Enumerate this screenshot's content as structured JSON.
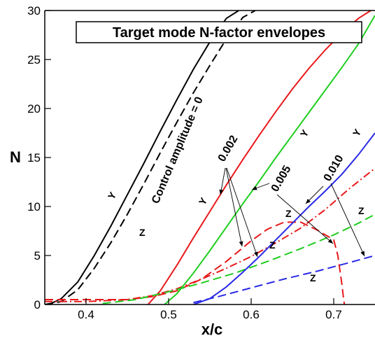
{
  "chart_data": {
    "type": "line",
    "title": "Target mode N-factor envelopes",
    "xlabel": "x/c",
    "ylabel": "N",
    "xlim": [
      0.35,
      0.75
    ],
    "ylim": [
      0,
      30
    ],
    "xticks": [
      0.4,
      0.5,
      0.6,
      0.7
    ],
    "yticks": [
      0,
      5,
      10,
      15,
      20,
      25,
      30
    ],
    "x_tick_labels": [
      "0.4",
      "0.5",
      "0.6",
      "0.7"
    ],
    "y_tick_labels": [
      "0",
      "5",
      "10",
      "15",
      "20",
      "25",
      "30"
    ],
    "grid": false,
    "legend": "none",
    "annotations": {
      "control_amplitude": "Control amplitude = 0",
      "a0002": "0.002",
      "a0005": "0.005",
      "a0010": "0.010",
      "y_label": "Y",
      "z_label": "Z"
    },
    "series": [
      {
        "color": "#000000",
        "dash": "solid",
        "x": [
          0.355,
          0.37,
          0.39,
          0.41,
          0.43,
          0.45,
          0.47,
          0.49,
          0.51,
          0.53,
          0.55,
          0.57,
          0.585
        ],
        "y": [
          0,
          0.6,
          2.3,
          5.0,
          8.0,
          11.2,
          14.4,
          17.7,
          20.9,
          24.0,
          26.8,
          29.2,
          30
        ]
      },
      {
        "color": "#000000",
        "dash": "dash",
        "x": [
          0.35,
          0.37,
          0.39,
          0.41,
          0.43,
          0.45,
          0.47,
          0.49,
          0.51,
          0.53,
          0.55,
          0.57,
          0.59,
          0.605
        ],
        "y": [
          0,
          0.3,
          1.5,
          3.7,
          6.3,
          9.2,
          12.3,
          15.5,
          18.6,
          21.6,
          24.4,
          27.1,
          29.3,
          30
        ]
      },
      {
        "color": "#e8191b",
        "dash": "solid",
        "x": [
          0.475,
          0.49,
          0.51,
          0.53,
          0.55,
          0.57,
          0.59,
          0.61,
          0.63,
          0.65,
          0.67,
          0.69,
          0.71,
          0.73,
          0.745
        ],
        "y": [
          0,
          1.4,
          4.0,
          6.8,
          9.5,
          12.2,
          14.8,
          17.3,
          19.7,
          22.0,
          24.1,
          26.0,
          27.7,
          29.2,
          30
        ]
      },
      {
        "color": "#e8191b",
        "dash": "dashdot",
        "x": [
          0.35,
          0.4,
          0.45,
          0.48,
          0.51,
          0.54,
          0.57,
          0.6,
          0.63,
          0.66,
          0.69,
          0.72,
          0.75
        ],
        "y": [
          0.3,
          0.3,
          0.5,
          0.9,
          1.6,
          2.6,
          3.7,
          4.9,
          6.3,
          7.8,
          9.7,
          11.9,
          13.9
        ]
      },
      {
        "color": "#e8191b",
        "dash": "dash",
        "x": [
          0.35,
          0.4,
          0.45,
          0.48,
          0.51,
          0.54,
          0.57,
          0.6,
          0.62,
          0.64,
          0.66,
          0.68,
          0.7,
          0.705,
          0.71,
          0.712,
          0.713
        ],
        "y": [
          0.5,
          0.5,
          0.5,
          0.8,
          1.4,
          2.6,
          4.4,
          6.5,
          7.7,
          8.4,
          8.4,
          7.6,
          6.6,
          5.0,
          2.0,
          0.5,
          0
        ]
      },
      {
        "color": "#1fcd1f",
        "dash": "solid",
        "x": [
          0.495,
          0.51,
          0.53,
          0.55,
          0.57,
          0.59,
          0.61,
          0.63,
          0.65,
          0.67,
          0.69,
          0.71,
          0.73,
          0.75
        ],
        "y": [
          0,
          1.1,
          3.2,
          5.5,
          7.9,
          10.3,
          12.6,
          15.0,
          17.3,
          19.6,
          21.9,
          24.2,
          26.6,
          29.5
        ]
      },
      {
        "color": "#1fcd1f",
        "dash": "dash",
        "x": [
          0.42,
          0.46,
          0.5,
          0.54,
          0.58,
          0.62,
          0.66,
          0.7,
          0.73,
          0.75
        ],
        "y": [
          0.1,
          0.5,
          1.3,
          2.2,
          3.2,
          4.4,
          5.7,
          7.1,
          8.3,
          9.2
        ]
      },
      {
        "color": "#2a2ae6",
        "dash": "solid",
        "x": [
          0.53,
          0.55,
          0.57,
          0.59,
          0.61,
          0.63,
          0.65,
          0.67,
          0.69,
          0.71,
          0.73,
          0.75
        ],
        "y": [
          0,
          0.6,
          1.8,
          3.3,
          4.9,
          6.6,
          8.3,
          10.0,
          11.6,
          13.3,
          15.3,
          17.5
        ]
      },
      {
        "color": "#2a2ae6",
        "dash": "dash",
        "x": [
          0.53,
          0.56,
          0.6,
          0.64,
          0.68,
          0.72,
          0.75
        ],
        "y": [
          0.2,
          0.8,
          1.7,
          2.6,
          3.4,
          4.3,
          5.0
        ]
      }
    ]
  }
}
